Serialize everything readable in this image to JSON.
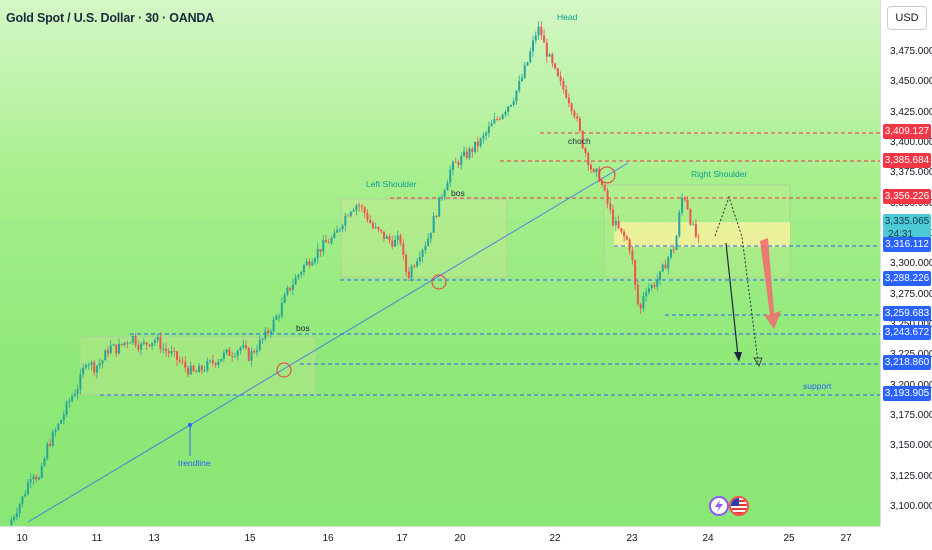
{
  "chart_title": "Gold Spot / U.S. Dollar · 30 · OANDA",
  "currency_button": "USD",
  "price_axis": {
    "min": 3085,
    "max": 3505,
    "ticks": [
      "3,100.000",
      "3,125.000",
      "3,150.000",
      "3,175.000",
      "3,200.000",
      "3,225.000",
      "3,250.000",
      "3,275.000",
      "3,300.000",
      "3,325.000",
      "3,350.000",
      "3,375.000",
      "3,400.000",
      "3,425.000",
      "3,450.000",
      "3,475.000"
    ],
    "tick_values": [
      3100,
      3125,
      3150,
      3175,
      3200,
      3225,
      3250,
      3275,
      3300,
      3325,
      3350,
      3375,
      3400,
      3425,
      3450,
      3475
    ]
  },
  "time_axis": [
    "10",
    "11",
    "13",
    "15",
    "16",
    "17",
    "20",
    "22",
    "23",
    "24",
    "25",
    "27"
  ],
  "price_labels": [
    {
      "text": "3,409.127",
      "value": 3409.127,
      "color": "#f23645"
    },
    {
      "text": "3,385.684",
      "value": 3385.684,
      "color": "#f23645"
    },
    {
      "text": "3,356.226",
      "value": 3356.226,
      "color": "#f23645"
    },
    {
      "text": "3,335.065",
      "value": 3335.065,
      "color": "#4ec9d6"
    },
    {
      "text": "3,316.112",
      "value": 3316.112,
      "color": "#2962ff"
    },
    {
      "text": "3,288.226",
      "value": 3288.226,
      "color": "#2962ff"
    },
    {
      "text": "3,259.683",
      "value": 3259.683,
      "color": "#2962ff"
    },
    {
      "text": "3,243.672",
      "value": 3243.672,
      "color": "#2962ff"
    },
    {
      "text": "3,218.860",
      "value": 3218.86,
      "color": "#2962ff"
    },
    {
      "text": "3,193.905",
      "value": 3193.905,
      "color": "#2962ff"
    }
  ],
  "countdown": "24:31",
  "annotations": {
    "head": "Head",
    "left_shoulder": "Left Shoulder",
    "right_shoulder": "Right Shoulder",
    "choch": "choch",
    "bos_1": "bos",
    "bos_2": "bos",
    "trendline": "trendline",
    "support": "support"
  },
  "colors": {
    "up": "#26a69a",
    "down": "#ef5350",
    "red_line": "#f23645",
    "blue_line": "#2962ff",
    "cyan": "#00bcd4"
  },
  "icons": {
    "flash": "lightning-icon",
    "flag": "us-flag-icon"
  },
  "chart_data": {
    "type": "candlestick",
    "symbol": "XAUUSD",
    "interval": "30",
    "source": "OANDA",
    "path_points": [
      [
        0,
        3085
      ],
      [
        0.01,
        3098
      ],
      [
        0.02,
        3110
      ],
      [
        0.03,
        3130
      ],
      [
        0.04,
        3122
      ],
      [
        0.05,
        3150
      ],
      [
        0.06,
        3162
      ],
      [
        0.07,
        3175
      ],
      [
        0.08,
        3190
      ],
      [
        0.09,
        3200
      ],
      [
        0.095,
        3210
      ],
      [
        0.1,
        3222
      ],
      [
        0.11,
        3215
      ],
      [
        0.12,
        3220
      ],
      [
        0.13,
        3232
      ],
      [
        0.14,
        3230
      ],
      [
        0.15,
        3236
      ],
      [
        0.16,
        3240
      ],
      [
        0.17,
        3232
      ],
      [
        0.18,
        3236
      ],
      [
        0.19,
        3238
      ],
      [
        0.2,
        3230
      ],
      [
        0.21,
        3226
      ],
      [
        0.22,
        3220
      ],
      [
        0.23,
        3214
      ],
      [
        0.24,
        3210
      ],
      [
        0.25,
        3214
      ],
      [
        0.26,
        3218
      ],
      [
        0.27,
        3222
      ],
      [
        0.28,
        3226
      ],
      [
        0.29,
        3228
      ],
      [
        0.3,
        3232
      ],
      [
        0.31,
        3224
      ],
      [
        0.32,
        3232
      ],
      [
        0.33,
        3240
      ],
      [
        0.34,
        3250
      ],
      [
        0.35,
        3262
      ],
      [
        0.36,
        3278
      ],
      [
        0.37,
        3288
      ],
      [
        0.38,
        3298
      ],
      [
        0.39,
        3305
      ],
      [
        0.4,
        3312
      ],
      [
        0.41,
        3318
      ],
      [
        0.42,
        3322
      ],
      [
        0.43,
        3335
      ],
      [
        0.44,
        3346
      ],
      [
        0.45,
        3350
      ],
      [
        0.46,
        3342
      ],
      [
        0.47,
        3330
      ],
      [
        0.48,
        3325
      ],
      [
        0.49,
        3320
      ],
      [
        0.5,
        3318
      ],
      [
        0.505,
        3322
      ],
      [
        0.51,
        3300
      ],
      [
        0.515,
        3290
      ],
      [
        0.52,
        3298
      ],
      [
        0.53,
        3310
      ],
      [
        0.54,
        3320
      ],
      [
        0.55,
        3340
      ],
      [
        0.56,
        3360
      ],
      [
        0.57,
        3378
      ],
      [
        0.58,
        3385
      ],
      [
        0.59,
        3390
      ],
      [
        0.6,
        3396
      ],
      [
        0.61,
        3402
      ],
      [
        0.62,
        3412
      ],
      [
        0.63,
        3420
      ],
      [
        0.64,
        3428
      ],
      [
        0.65,
        3436
      ],
      [
        0.66,
        3450
      ],
      [
        0.67,
        3468
      ],
      [
        0.68,
        3490
      ],
      [
        0.685,
        3495
      ],
      [
        0.69,
        3482
      ],
      [
        0.7,
        3465
      ],
      [
        0.71,
        3450
      ],
      [
        0.72,
        3440
      ],
      [
        0.73,
        3425
      ],
      [
        0.74,
        3400
      ],
      [
        0.75,
        3382
      ],
      [
        0.755,
        3372
      ],
      [
        0.76,
        3376
      ],
      [
        0.77,
        3355
      ],
      [
        0.78,
        3335
      ],
      [
        0.79,
        3325
      ],
      [
        0.8,
        3318
      ],
      [
        0.805,
        3300
      ],
      [
        0.81,
        3270
      ],
      [
        0.815,
        3262
      ],
      [
        0.82,
        3280
      ],
      [
        0.83,
        3282
      ],
      [
        0.84,
        3290
      ],
      [
        0.85,
        3305
      ],
      [
        0.86,
        3316
      ],
      [
        0.865,
        3340
      ],
      [
        0.87,
        3360
      ],
      [
        0.875,
        3350
      ],
      [
        0.88,
        3335
      ],
      [
        0.885,
        3325
      ],
      [
        0.89,
        3318
      ]
    ]
  }
}
